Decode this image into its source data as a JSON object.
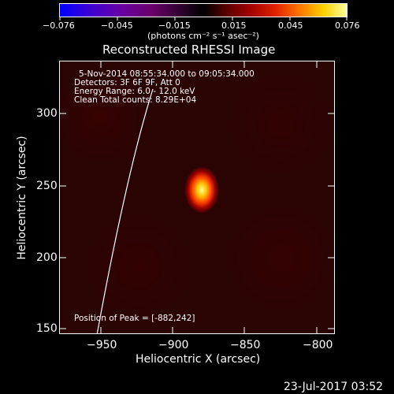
{
  "colorbar": {
    "ticks": [
      "−0.076",
      "−0.045",
      "−0.015",
      "0.015",
      "0.045",
      "0.076"
    ],
    "unit_label": "(photons cm⁻² s⁻¹ asec⁻²)"
  },
  "title": "Reconstructed RHESSI Image",
  "info": {
    "time_range": "5-Nov-2014 08:55:34.000 to 09:05:34.000",
    "detectors": "Detectors: 3F 6F 9F, Att 0",
    "energy_range": "Energy Range: 6.0 - 12.0 keV",
    "clean_counts": "Clean     Total counts: 8.29E+04",
    "peak_position": "Position of Peak = [-882,242]"
  },
  "axes": {
    "x_label": "Heliocentric X (arcsec)",
    "y_label": "Heliocentric Y (arcsec)",
    "x_ticks": [
      "−950",
      "−900",
      "−850",
      "−800"
    ],
    "y_ticks": [
      "300",
      "250",
      "200",
      "150"
    ]
  },
  "footer": {
    "date": "23-Jul-2017 03:52"
  },
  "colors": {
    "background": "#000000",
    "peak": "#ffff90",
    "limb": "#ffffff"
  }
}
